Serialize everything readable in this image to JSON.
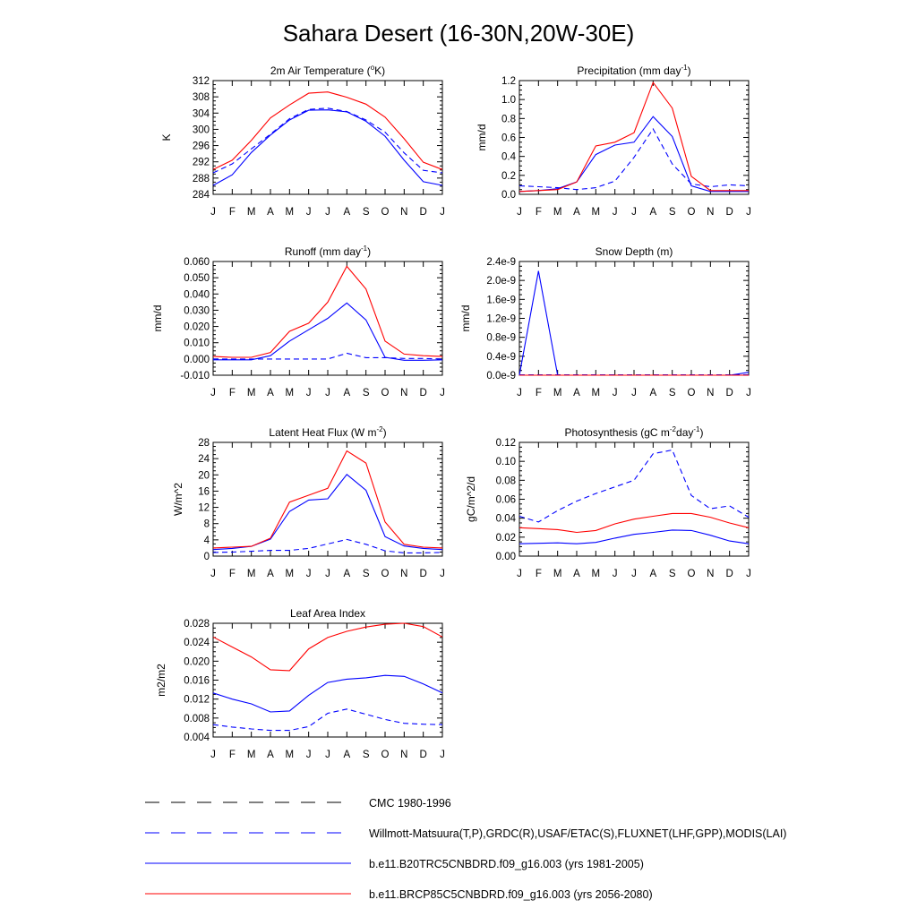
{
  "title": "Sahara Desert (16-30N,20W-30E)",
  "months": [
    "J",
    "F",
    "M",
    "A",
    "M",
    "J",
    "J",
    "A",
    "S",
    "O",
    "N",
    "D",
    "J"
  ],
  "colors": {
    "obs": "#0000ff",
    "hist": "#0000ff",
    "future": "#ff0000"
  },
  "legend": [
    {
      "key": "cmc",
      "label": "CMC 1980-1996",
      "color": "#000000",
      "style": "dash-long"
    },
    {
      "key": "obs",
      "label": "Willmott-Matsuura(T,P),GRDC(R),USAF/ETAC(S),FLUXNET(LHF,GPP),MODIS(LAI)",
      "color": "#0000ff",
      "style": "dash-long"
    },
    {
      "key": "hist",
      "label": "b.e11.B20TRC5CNBDRD.f09_g16.003 (yrs 1981-2005)",
      "color": "#0000ff",
      "style": "solid"
    },
    {
      "key": "future",
      "label": "b.e11.BRCP85C5CNBDRD.f09_g16.003 (yrs 2056-2080)",
      "color": "#ff0000",
      "style": "solid"
    }
  ],
  "chart_data": [
    {
      "type": "line",
      "id": "tsa",
      "title": "2m Air Temperature (",
      "title_sup": "o",
      "title_after": "K)",
      "ylabel": "K",
      "ylim": [
        284,
        312
      ],
      "yticks": [
        284,
        288,
        292,
        296,
        300,
        304,
        308,
        312
      ],
      "ytick_labels": [
        "284",
        "288",
        "292",
        "296",
        "300",
        "304",
        "308",
        "312"
      ],
      "series": [
        {
          "key": "obs",
          "values": [
            289.3,
            291.5,
            295.2,
            298.8,
            302.6,
            304.9,
            305.2,
            304.4,
            302.3,
            299.3,
            294.2,
            289.9,
            289.3
          ]
        },
        {
          "key": "hist",
          "values": [
            286.2,
            288.8,
            294.3,
            298.6,
            302.3,
            304.7,
            304.8,
            304.3,
            302.0,
            298.3,
            292.4,
            287.1,
            286.2
          ]
        },
        {
          "key": "future",
          "values": [
            290.1,
            292.4,
            297.3,
            302.8,
            306.0,
            308.9,
            309.2,
            307.9,
            306.2,
            303.0,
            297.7,
            291.9,
            290.1
          ]
        }
      ]
    },
    {
      "type": "line",
      "id": "prect",
      "title": "Precipitation (mm day",
      "title_sup": "-1",
      "title_after": ")",
      "ylabel": "mm/d",
      "ylim": [
        0,
        1.2
      ],
      "yticks": [
        0,
        0.2,
        0.4,
        0.6,
        0.8,
        1.0,
        1.2
      ],
      "ytick_labels": [
        "0.0",
        "0.2",
        "0.4",
        "0.6",
        "0.8",
        "1.0",
        "1.2"
      ],
      "series": [
        {
          "key": "obs",
          "values": [
            0.09,
            0.08,
            0.07,
            0.05,
            0.07,
            0.14,
            0.39,
            0.69,
            0.32,
            0.11,
            0.08,
            0.1,
            0.09
          ]
        },
        {
          "key": "hist",
          "values": [
            0.03,
            0.04,
            0.06,
            0.13,
            0.42,
            0.52,
            0.55,
            0.82,
            0.61,
            0.09,
            0.03,
            0.03,
            0.03
          ]
        },
        {
          "key": "future",
          "values": [
            0.03,
            0.04,
            0.05,
            0.13,
            0.51,
            0.55,
            0.65,
            1.18,
            0.91,
            0.19,
            0.04,
            0.04,
            0.04
          ]
        }
      ]
    },
    {
      "type": "line",
      "id": "runoff",
      "title": "Runoff (mm day",
      "title_sup": "-1",
      "title_after": ")",
      "ylabel": "mm/d",
      "ylim": [
        -0.01,
        0.06
      ],
      "yticks": [
        -0.01,
        0,
        0.01,
        0.02,
        0.03,
        0.04,
        0.05,
        0.06
      ],
      "ytick_labels": [
        "-0.010",
        "0.000",
        "0.010",
        "0.020",
        "0.030",
        "0.040",
        "0.050",
        "0.060"
      ],
      "series": [
        {
          "key": "obs",
          "values": [
            0.0,
            0.0,
            0.0,
            0.0,
            0.0,
            0.0,
            0.0,
            0.0035,
            0.0008,
            0.0008,
            0.0003,
            0.0003,
            0.0
          ]
        },
        {
          "key": "hist",
          "values": [
            -0.0005,
            -0.0005,
            -0.0005,
            0.002,
            0.011,
            0.018,
            0.025,
            0.0345,
            0.024,
            0.001,
            -0.0008,
            -0.0008,
            -0.0005
          ]
        },
        {
          "key": "future",
          "values": [
            0.0015,
            0.001,
            0.001,
            0.004,
            0.017,
            0.022,
            0.035,
            0.057,
            0.043,
            0.011,
            0.003,
            0.002,
            0.0015
          ]
        }
      ]
    },
    {
      "type": "line",
      "id": "snowdp",
      "title": "Snow Depth (m)",
      "title_sup": "",
      "title_after": "",
      "ylabel": "mm/d",
      "ylim": [
        0,
        2.4
      ],
      "yticks": [
        0,
        0.4,
        0.8,
        1.2,
        1.6,
        2.0,
        2.4
      ],
      "ytick_labels": [
        "0.0e-9",
        "0.4e-9",
        "0.8e-9",
        "1.2e-9",
        "1.6e-9",
        "2.0e-9",
        "2.4e-9"
      ],
      "series": [
        {
          "key": "obs",
          "values": [
            0.01,
            0.01,
            0.01,
            0.01,
            0.01,
            0.01,
            0.01,
            0.01,
            0.01,
            0.01,
            0.01,
            0.01,
            0.01
          ]
        },
        {
          "key": "hist",
          "values": [
            0.0,
            2.2,
            0.0,
            0.0,
            0.0,
            0.0,
            0.0,
            0.0,
            0.0,
            0.0,
            0.0,
            0.0,
            0.06
          ]
        },
        {
          "key": "future",
          "values": [
            0.0,
            0.0,
            0.0,
            0.0,
            0.0,
            0.0,
            0.0,
            0.0,
            0.0,
            0.0,
            0.0,
            0.0,
            0.0
          ]
        }
      ]
    },
    {
      "type": "line",
      "id": "lhf",
      "title": "Latent Heat Flux (W m",
      "title_sup": "-2",
      "title_after": ")",
      "ylabel": "W/m^2",
      "ylim": [
        0,
        28
      ],
      "yticks": [
        0,
        4,
        8,
        12,
        16,
        20,
        24,
        28
      ],
      "ytick_labels": [
        "0",
        "4",
        "8",
        "12",
        "16",
        "20",
        "24",
        "28"
      ],
      "series": [
        {
          "key": "obs",
          "values": [
            0.9,
            1.0,
            1.2,
            1.4,
            1.4,
            1.9,
            3.0,
            4.1,
            2.9,
            1.3,
            0.8,
            0.8,
            0.9
          ]
        },
        {
          "key": "hist",
          "values": [
            1.6,
            1.9,
            2.4,
            4.2,
            11.0,
            13.8,
            14.1,
            20.1,
            16.2,
            4.8,
            2.5,
            1.9,
            1.6
          ]
        },
        {
          "key": "future",
          "values": [
            2.0,
            2.2,
            2.4,
            4.4,
            13.3,
            15.0,
            16.7,
            25.9,
            22.9,
            8.4,
            2.9,
            2.2,
            2.0
          ]
        }
      ]
    },
    {
      "type": "line",
      "id": "gpp",
      "title": "Photosynthesis (gC m",
      "title_sup": "-2",
      "title_after": "day",
      "title_sup2": "-1",
      "title_after2": ")",
      "ylabel": "gC/m^2/d",
      "ylim": [
        0,
        0.12
      ],
      "yticks": [
        0,
        0.02,
        0.04,
        0.06,
        0.08,
        0.1,
        0.12
      ],
      "ytick_labels": [
        "0.00",
        "0.02",
        "0.04",
        "0.06",
        "0.08",
        "0.10",
        "0.12"
      ],
      "series": [
        {
          "key": "obs",
          "values": [
            0.042,
            0.036,
            0.048,
            0.058,
            0.066,
            0.073,
            0.08,
            0.108,
            0.112,
            0.064,
            0.05,
            0.053,
            0.041
          ]
        },
        {
          "key": "hist",
          "values": [
            0.013,
            0.0135,
            0.014,
            0.013,
            0.0145,
            0.019,
            0.023,
            0.025,
            0.0275,
            0.027,
            0.022,
            0.016,
            0.013
          ]
        },
        {
          "key": "future",
          "values": [
            0.03,
            0.029,
            0.028,
            0.025,
            0.027,
            0.034,
            0.039,
            0.042,
            0.045,
            0.045,
            0.041,
            0.035,
            0.03
          ]
        }
      ]
    },
    {
      "type": "line",
      "id": "lai",
      "title": "Leaf Area Index",
      "title_sup": "",
      "title_after": "",
      "ylabel": "m2/m2",
      "ylim": [
        0.004,
        0.028
      ],
      "yticks": [
        0.004,
        0.008,
        0.012,
        0.016,
        0.02,
        0.024,
        0.028
      ],
      "ytick_labels": [
        "0.004",
        "0.008",
        "0.012",
        "0.016",
        "0.020",
        "0.024",
        "0.028"
      ],
      "series": [
        {
          "key": "obs",
          "values": [
            0.0066,
            0.0061,
            0.0057,
            0.0054,
            0.0054,
            0.0062,
            0.009,
            0.0099,
            0.0088,
            0.0077,
            0.0069,
            0.0067,
            0.0066
          ]
        },
        {
          "key": "hist",
          "values": [
            0.0133,
            0.012,
            0.011,
            0.0093,
            0.0095,
            0.0128,
            0.0155,
            0.0162,
            0.0165,
            0.017,
            0.0168,
            0.0152,
            0.0133
          ]
        },
        {
          "key": "future",
          "values": [
            0.0251,
            0.023,
            0.0209,
            0.0182,
            0.018,
            0.0226,
            0.025,
            0.0263,
            0.0272,
            0.0278,
            0.028,
            0.0273,
            0.0251
          ]
        }
      ]
    }
  ]
}
